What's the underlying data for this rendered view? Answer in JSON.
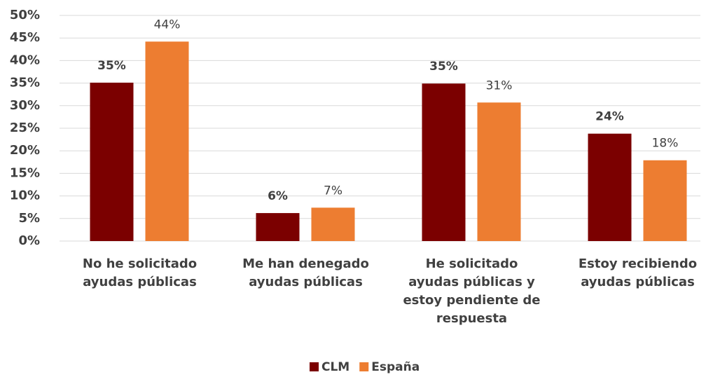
{
  "chart_data": {
    "type": "bar",
    "categories": [
      "No he solicitado ayudas públicas",
      "Me han denegado ayudas públicas",
      "He solicitado ayudas públicas y estoy pendiente de respuesta",
      "Estoy recibiendo ayudas públicas"
    ],
    "series": [
      {
        "name": "CLM",
        "color": "#7b0000",
        "values": [
          35.1,
          6.2,
          34.9,
          23.8
        ],
        "value_labels": [
          "35%",
          "6%",
          "35%",
          "24%"
        ]
      },
      {
        "name": "España",
        "color": "#ed7d31",
        "values": [
          44.2,
          7.4,
          30.7,
          17.9
        ],
        "value_labels": [
          "44%",
          "7%",
          "31%",
          "18%"
        ]
      }
    ],
    "ylim": [
      0,
      50
    ],
    "yticks": [
      {
        "value": 0,
        "label": "0%"
      },
      {
        "value": 5,
        "label": "5%"
      },
      {
        "value": 10,
        "label": "10%"
      },
      {
        "value": 15,
        "label": "15%"
      },
      {
        "value": 20,
        "label": "20%"
      },
      {
        "value": 25,
        "label": "25%"
      },
      {
        "value": 30,
        "label": "30%"
      },
      {
        "value": 35,
        "label": "35%"
      },
      {
        "value": 40,
        "label": "40%"
      },
      {
        "value": 45,
        "label": "45%"
      },
      {
        "value": 50,
        "label": "50%"
      }
    ],
    "grid": true,
    "legend": "bottom"
  }
}
